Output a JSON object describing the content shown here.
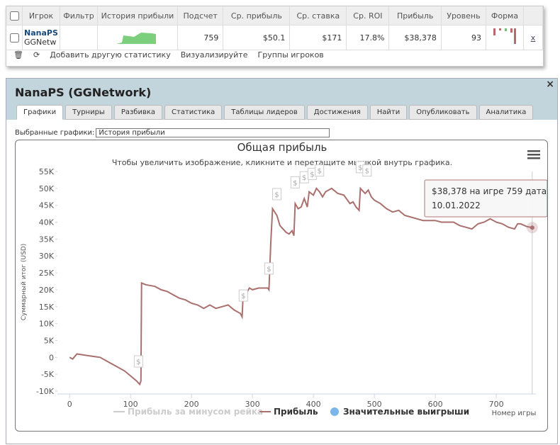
{
  "table": {
    "headers": [
      "Игрок",
      "Фильтр",
      "История прибыли",
      "Подсчет",
      "Ср. прибыль",
      "Ср. ставка",
      "Ср. ROI",
      "Прибыль",
      "Уровень",
      "Форма"
    ],
    "row": {
      "player": "NanaPS",
      "network": "GGNetwork",
      "count": "759",
      "avg_profit": "$50.1",
      "avg_stake": "$171",
      "avg_roi": "17.8%",
      "profit": "$38,378",
      "level": "93",
      "remove": "x"
    }
  },
  "toolbar": {
    "add": "Добавить другую статистику",
    "visualize": "Визуализируйте",
    "groups": "Группы игроков"
  },
  "panel": {
    "title": "NanaPS (GGNetwork)",
    "close": "×",
    "tabs": [
      "Графики",
      "Турниры",
      "Разбивка",
      "Статистика",
      "Таблицы лидеров",
      "Достижения",
      "Найти",
      "Опубликовать",
      "Аналитика"
    ],
    "select_label": "Выбранные графики:",
    "select_value": "История прибыли"
  },
  "chart_data": {
    "type": "line",
    "title": "Общая прибыль",
    "subtitle": "Чтобы увеличить изображение, кликните и перетащите мышкой внутрь графика.",
    "y_label": "Суммарный итог (USD)",
    "x_label": "Номер игры",
    "xlim": [
      -20,
      765
    ],
    "ylim": [
      -10000,
      55000
    ],
    "xticks": [
      0,
      100,
      200,
      300,
      400,
      500,
      600,
      700
    ],
    "yticks": [
      {
        "value": -10000,
        "label": "-10K"
      },
      {
        "value": -5000,
        "label": "-5K"
      },
      0,
      {
        "value": 5000,
        "label": "5K"
      },
      {
        "value": 10000,
        "label": "10K"
      },
      {
        "value": 15000,
        "label": "15K"
      },
      {
        "value": 20000,
        "label": "20K"
      },
      {
        "value": 25000,
        "label": "25K"
      },
      {
        "value": 30000,
        "label": "30K"
      },
      {
        "value": 35000,
        "label": "35K"
      },
      {
        "value": 40000,
        "label": "40K"
      },
      {
        "value": 45000,
        "label": "45K"
      },
      {
        "value": 50000,
        "label": "50K"
      },
      {
        "value": 55000,
        "label": "55K"
      }
    ],
    "legend": [
      {
        "name": "Прибыль за минусом рейка",
        "color": "#cccccc"
      },
      {
        "name": "Прибыль",
        "color": "#a9706e"
      },
      {
        "name": "Значительные выигрыши",
        "color": "#7cb5ec"
      }
    ],
    "series": [
      {
        "name": "Прибыль",
        "color": "#a9706e",
        "x": [
          0,
          5,
          12,
          30,
          50,
          60,
          75,
          90,
          100,
          110,
          115,
          117,
          118,
          125,
          140,
          150,
          160,
          170,
          180,
          190,
          200,
          210,
          220,
          230,
          240,
          250,
          260,
          270,
          280,
          283,
          285,
          290,
          295,
          300,
          310,
          320,
          325,
          327,
          330,
          333,
          340,
          345,
          350,
          355,
          360,
          365,
          368,
          370,
          375,
          380,
          385,
          390,
          393,
          400,
          405,
          410,
          415,
          420,
          425,
          430,
          440,
          450,
          460,
          465,
          470,
          475,
          477,
          482,
          485,
          490,
          495,
          500,
          510,
          520,
          530,
          540,
          550,
          560,
          570,
          580,
          600,
          610,
          620,
          630,
          640,
          650,
          660,
          670,
          680,
          690,
          700,
          710,
          720,
          730,
          735,
          740,
          750,
          759
        ],
        "values": [
          0,
          -500,
          1000,
          500,
          0,
          -1000,
          -2500,
          -4000,
          -5500,
          -7000,
          -8000,
          -7000,
          22000,
          21500,
          21000,
          20000,
          19500,
          18500,
          17500,
          17000,
          16000,
          15500,
          14500,
          15500,
          14500,
          15000,
          15500,
          14000,
          13000,
          12000,
          19500,
          19000,
          20500,
          20000,
          20500,
          20500,
          20500,
          20000,
          34000,
          44000,
          42000,
          39000,
          38000,
          37000,
          36500,
          37500,
          36000,
          45500,
          44000,
          44500,
          47000,
          44500,
          49000,
          48000,
          50000,
          49000,
          47500,
          49000,
          49500,
          50000,
          48500,
          48000,
          45500,
          46000,
          44500,
          43500,
          50000,
          49000,
          48500,
          49500,
          47500,
          46500,
          45500,
          44000,
          43000,
          43500,
          42000,
          41500,
          41000,
          40500,
          40500,
          40000,
          40000,
          40000,
          39000,
          38500,
          38000,
          39500,
          40000,
          41000,
          40000,
          39500,
          38500,
          38000,
          39500,
          39500,
          38700,
          38378
        ]
      }
    ],
    "flags": {
      "label": "$",
      "x": [
        113,
        285,
        327,
        340,
        370,
        385,
        398,
        410,
        477,
        488
      ],
      "values": [
        -7500,
        12000,
        20000,
        42000,
        45500,
        47000,
        48000,
        49000,
        50000,
        49000
      ]
    },
    "tooltip": {
      "line1": "$38,378 на игре 759 дата",
      "line2": "10.01.2022"
    }
  }
}
